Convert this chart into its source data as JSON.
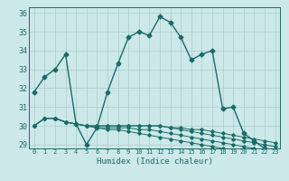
{
  "xlabel": "Humidex (Indice chaleur)",
  "bg_color": "#cce8e8",
  "grid_color": "#aacccc",
  "line_color": "#1a6b6b",
  "xlim": [
    -0.5,
    23.5
  ],
  "ylim": [
    28.8,
    36.3
  ],
  "yticks": [
    29,
    30,
    31,
    32,
    33,
    34,
    35,
    36
  ],
  "xticks": [
    0,
    1,
    2,
    3,
    4,
    5,
    6,
    7,
    8,
    9,
    10,
    11,
    12,
    13,
    14,
    15,
    16,
    17,
    18,
    19,
    20,
    21,
    22,
    23
  ],
  "series": [
    [
      31.8,
      32.6,
      33.0,
      33.8,
      30.1,
      29.0,
      29.9,
      31.8,
      33.3,
      34.7,
      35.0,
      34.8,
      35.8,
      35.5,
      34.7,
      33.5,
      33.8,
      34.0,
      30.9,
      31.0,
      29.6,
      29.2,
      28.8,
      28.7
    ],
    [
      30.0,
      30.4,
      30.4,
      30.2,
      30.1,
      30.0,
      30.0,
      30.0,
      30.0,
      30.0,
      30.0,
      30.0,
      30.0,
      29.9,
      29.9,
      29.8,
      29.8,
      29.7,
      29.6,
      29.5,
      29.4,
      29.3,
      29.2,
      29.1
    ],
    [
      30.0,
      30.4,
      30.4,
      30.2,
      30.1,
      30.0,
      30.0,
      30.0,
      30.0,
      30.0,
      30.0,
      30.0,
      30.0,
      29.9,
      29.8,
      29.7,
      29.6,
      29.5,
      29.4,
      29.3,
      29.2,
      29.1,
      29.0,
      28.9
    ],
    [
      30.0,
      30.4,
      30.4,
      30.2,
      30.1,
      30.0,
      29.9,
      29.9,
      29.9,
      29.9,
      29.8,
      29.8,
      29.7,
      29.6,
      29.5,
      29.4,
      29.3,
      29.2,
      29.1,
      29.0,
      28.9,
      28.8,
      28.7,
      28.6
    ],
    [
      30.0,
      30.4,
      30.4,
      30.2,
      30.1,
      30.0,
      29.9,
      29.8,
      29.8,
      29.7,
      29.6,
      29.5,
      29.4,
      29.3,
      29.2,
      29.1,
      29.0,
      28.9,
      28.8,
      28.7,
      28.6,
      28.5,
      28.4,
      28.3
    ]
  ]
}
